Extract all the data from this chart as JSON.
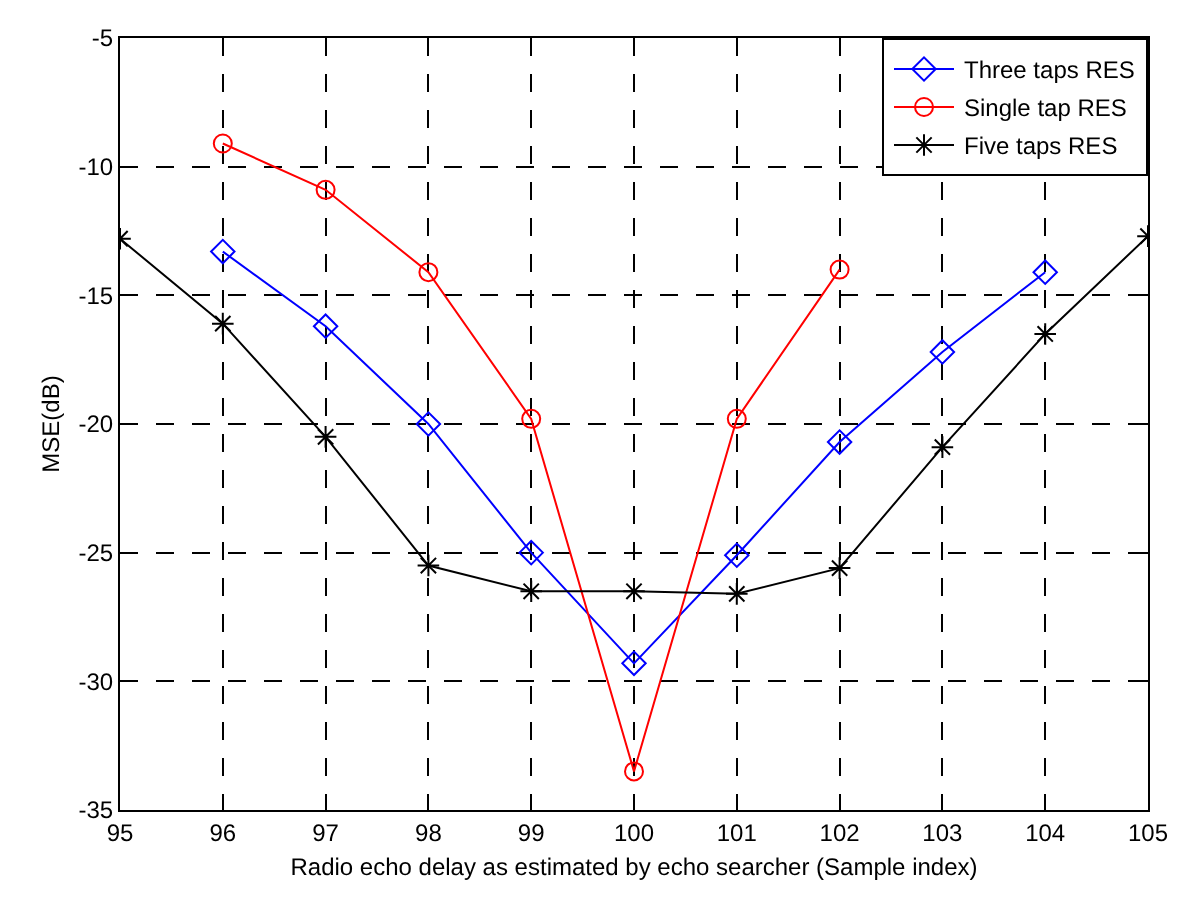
{
  "chart_data": {
    "type": "line",
    "xlabel": "Radio echo delay as estimated by echo searcher (Sample index)",
    "ylabel": "MSE(dB)",
    "x": [
      95,
      96,
      97,
      98,
      99,
      100,
      101,
      102,
      103,
      104,
      105
    ],
    "series": [
      {
        "name": "Three taps RES",
        "color": "#0000ff",
        "marker": "diamond",
        "values": [
          null,
          -13.3,
          -16.2,
          -20,
          -25,
          -29.3,
          -25.1,
          -20.7,
          -17.2,
          -14.1,
          null
        ]
      },
      {
        "name": "Single tap RES",
        "color": "#ff0000",
        "marker": "circle",
        "values": [
          null,
          -9.1,
          -10.9,
          -14.1,
          -19.8,
          -33.5,
          -19.8,
          -14,
          null,
          null,
          null
        ]
      },
      {
        "name": "Five taps RES",
        "color": "#000000",
        "marker": "cross",
        "values": [
          -12.8,
          -16.1,
          -20.5,
          -25.5,
          -26.5,
          -26.5,
          -26.6,
          -25.6,
          -20.9,
          -16.5,
          -12.7
        ]
      }
    ],
    "xlim": [
      95,
      105
    ],
    "xticks": [
      95,
      96,
      97,
      98,
      99,
      100,
      101,
      102,
      103,
      104,
      105
    ],
    "ylim": [
      -35,
      -5
    ],
    "yticks": [
      -35,
      -30,
      -25,
      -20,
      -15,
      -10,
      -5
    ],
    "grid": true,
    "legend": "top right",
    "line_style": "solid"
  }
}
